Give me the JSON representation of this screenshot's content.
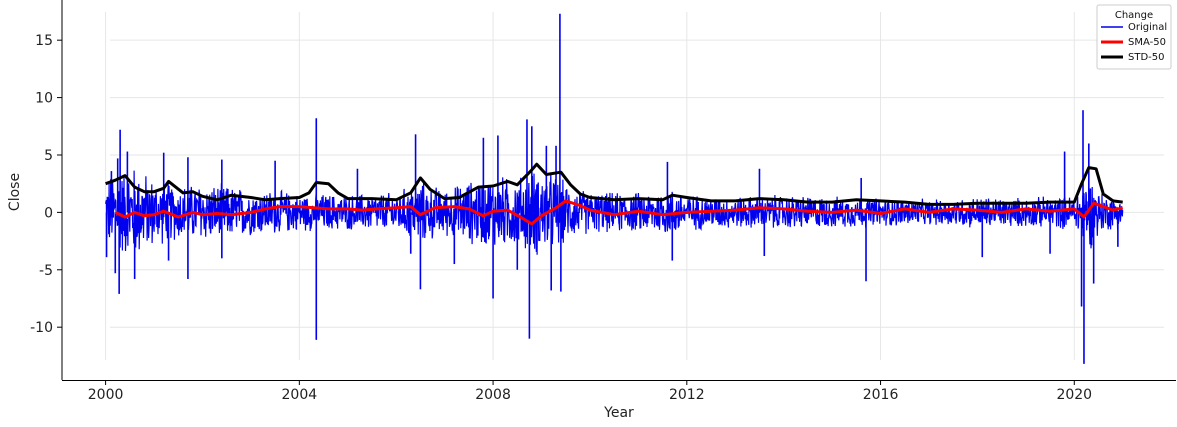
{
  "chart_data": {
    "type": "line",
    "xlabel": "Year",
    "ylabel": "Close",
    "xlim": [
      1999.1,
      2022.1
    ],
    "ylim": [
      -14.6,
      18.5
    ],
    "x_ticks": [
      2000,
      2004,
      2008,
      2012,
      2016,
      2020
    ],
    "y_ticks": [
      -10,
      -5,
      0,
      5,
      10,
      15
    ],
    "grid": true,
    "legend": {
      "title": "Change",
      "placement": "top-right",
      "entries": [
        {
          "name": "Original",
          "color": "#0000ee"
        },
        {
          "name": "SMA-50",
          "color": "#ff0000"
        },
        {
          "name": "STD-50",
          "color": "#000000"
        }
      ]
    },
    "series": [
      {
        "name": "Original",
        "color": "#0000ee",
        "kind": "daily",
        "range": [
          2000.0,
          2021.0
        ],
        "envelope": [
          [
            2000.0,
            3.5
          ],
          [
            2000.3,
            4.0
          ],
          [
            2000.6,
            4.5
          ],
          [
            2001.0,
            3.2
          ],
          [
            2001.5,
            2.6
          ],
          [
            2002.0,
            2.8
          ],
          [
            2002.5,
            2.6
          ],
          [
            2003.0,
            2.2
          ],
          [
            2003.5,
            2.1
          ],
          [
            2004.0,
            1.8
          ],
          [
            2004.5,
            1.8
          ],
          [
            2005.0,
            1.7
          ],
          [
            2006.0,
            1.9
          ],
          [
            2006.5,
            3.0
          ],
          [
            2007.0,
            2.2
          ],
          [
            2007.5,
            3.0
          ],
          [
            2008.0,
            3.5
          ],
          [
            2008.5,
            3.3
          ],
          [
            2008.9,
            4.2
          ],
          [
            2009.3,
            3.6
          ],
          [
            2009.6,
            2.5
          ],
          [
            2010.0,
            2.0
          ],
          [
            2010.5,
            1.9
          ],
          [
            2011.0,
            1.9
          ],
          [
            2011.7,
            2.3
          ],
          [
            2012.0,
            1.7
          ],
          [
            2013.0,
            1.5
          ],
          [
            2014.0,
            1.7
          ],
          [
            2015.0,
            1.5
          ],
          [
            2016.0,
            1.4
          ],
          [
            2017.0,
            1.2
          ],
          [
            2018.0,
            1.5
          ],
          [
            2019.0,
            1.4
          ],
          [
            2020.0,
            1.6
          ],
          [
            2020.3,
            3.6
          ],
          [
            2020.6,
            1.8
          ],
          [
            2021.0,
            1.5
          ]
        ],
        "spikes": [
          [
            2000.02,
            -3.9
          ],
          [
            2000.12,
            3.6
          ],
          [
            2000.2,
            -5.3
          ],
          [
            2000.25,
            4.7
          ],
          [
            2000.28,
            -7.1
          ],
          [
            2000.3,
            7.2
          ],
          [
            2000.45,
            5.3
          ],
          [
            2000.6,
            -5.8
          ],
          [
            2001.2,
            5.2
          ],
          [
            2001.3,
            -4.2
          ],
          [
            2001.7,
            4.8
          ],
          [
            2001.7,
            -5.8
          ],
          [
            2002.4,
            -4.0
          ],
          [
            2002.4,
            4.6
          ],
          [
            2003.5,
            4.5
          ],
          [
            2004.35,
            8.2
          ],
          [
            2004.35,
            -11.1
          ],
          [
            2005.2,
            3.8
          ],
          [
            2006.3,
            -3.6
          ],
          [
            2006.4,
            6.8
          ],
          [
            2006.5,
            -6.7
          ],
          [
            2007.2,
            -4.5
          ],
          [
            2007.8,
            6.5
          ],
          [
            2008.0,
            -7.5
          ],
          [
            2008.1,
            6.7
          ],
          [
            2008.5,
            -5.0
          ],
          [
            2008.7,
            8.1
          ],
          [
            2008.75,
            -11.0
          ],
          [
            2008.8,
            7.5
          ],
          [
            2009.1,
            5.8
          ],
          [
            2009.2,
            -6.8
          ],
          [
            2009.3,
            5.8
          ],
          [
            2009.38,
            17.3
          ],
          [
            2009.4,
            -6.9
          ],
          [
            2011.6,
            4.4
          ],
          [
            2011.7,
            -4.2
          ],
          [
            2013.5,
            3.8
          ],
          [
            2013.6,
            -3.8
          ],
          [
            2015.6,
            3.0
          ],
          [
            2015.7,
            -6.0
          ],
          [
            2018.1,
            -3.9
          ],
          [
            2019.5,
            -3.6
          ],
          [
            2019.8,
            5.3
          ],
          [
            2020.15,
            -8.2
          ],
          [
            2020.18,
            8.9
          ],
          [
            2020.2,
            -13.2
          ],
          [
            2020.3,
            6.0
          ],
          [
            2020.4,
            -6.2
          ],
          [
            2020.9,
            -3.0
          ]
        ]
      },
      {
        "name": "SMA-50",
        "color": "#ff0000",
        "points": [
          [
            2000.2,
            0.0
          ],
          [
            2000.4,
            -0.4
          ],
          [
            2000.6,
            0.0
          ],
          [
            2000.8,
            -0.3
          ],
          [
            2001.0,
            -0.2
          ],
          [
            2001.2,
            0.1
          ],
          [
            2001.5,
            -0.4
          ],
          [
            2001.8,
            0.0
          ],
          [
            2002.0,
            -0.2
          ],
          [
            2002.3,
            -0.1
          ],
          [
            2002.6,
            -0.2
          ],
          [
            2003.0,
            0.0
          ],
          [
            2003.3,
            0.3
          ],
          [
            2003.6,
            0.5
          ],
          [
            2004.0,
            0.5
          ],
          [
            2004.3,
            0.4
          ],
          [
            2004.6,
            0.3
          ],
          [
            2005.0,
            0.3
          ],
          [
            2005.3,
            0.2
          ],
          [
            2005.6,
            0.3
          ],
          [
            2006.0,
            0.4
          ],
          [
            2006.3,
            0.5
          ],
          [
            2006.5,
            -0.2
          ],
          [
            2006.8,
            0.4
          ],
          [
            2007.2,
            0.5
          ],
          [
            2007.5,
            0.3
          ],
          [
            2007.8,
            -0.3
          ],
          [
            2008.0,
            0.1
          ],
          [
            2008.3,
            0.2
          ],
          [
            2008.6,
            -0.5
          ],
          [
            2008.8,
            -1.0
          ],
          [
            2009.0,
            -0.3
          ],
          [
            2009.3,
            0.4
          ],
          [
            2009.5,
            1.0
          ],
          [
            2009.8,
            0.6
          ],
          [
            2010.0,
            0.2
          ],
          [
            2010.5,
            -0.2
          ],
          [
            2011.0,
            0.1
          ],
          [
            2011.5,
            -0.2
          ],
          [
            2012.0,
            0.0
          ],
          [
            2012.5,
            0.1
          ],
          [
            2013.0,
            0.2
          ],
          [
            2013.5,
            0.4
          ],
          [
            2014.0,
            0.3
          ],
          [
            2014.5,
            0.1
          ],
          [
            2015.0,
            0.0
          ],
          [
            2015.5,
            0.2
          ],
          [
            2016.0,
            -0.1
          ],
          [
            2016.5,
            0.3
          ],
          [
            2017.0,
            0.0
          ],
          [
            2017.5,
            0.3
          ],
          [
            2018.0,
            0.2
          ],
          [
            2018.5,
            0.0
          ],
          [
            2019.0,
            0.3
          ],
          [
            2019.5,
            0.1
          ],
          [
            2020.0,
            0.3
          ],
          [
            2020.2,
            -0.4
          ],
          [
            2020.4,
            0.8
          ],
          [
            2020.6,
            0.5
          ],
          [
            2020.8,
            0.2
          ],
          [
            2021.0,
            0.4
          ]
        ]
      },
      {
        "name": "STD-50",
        "color": "#000000",
        "points": [
          [
            2000.0,
            2.5
          ],
          [
            2000.2,
            2.8
          ],
          [
            2000.4,
            3.2
          ],
          [
            2000.6,
            2.2
          ],
          [
            2000.8,
            1.8
          ],
          [
            2001.0,
            1.8
          ],
          [
            2001.2,
            2.1
          ],
          [
            2001.3,
            2.7
          ],
          [
            2001.6,
            1.7
          ],
          [
            2001.8,
            1.8
          ],
          [
            2002.0,
            1.4
          ],
          [
            2002.3,
            1.1
          ],
          [
            2002.6,
            1.5
          ],
          [
            2003.0,
            1.3
          ],
          [
            2003.3,
            1.1
          ],
          [
            2003.6,
            1.2
          ],
          [
            2004.0,
            1.3
          ],
          [
            2004.2,
            1.7
          ],
          [
            2004.35,
            2.6
          ],
          [
            2004.6,
            2.5
          ],
          [
            2004.8,
            1.7
          ],
          [
            2005.0,
            1.2
          ],
          [
            2005.5,
            1.2
          ],
          [
            2006.0,
            1.1
          ],
          [
            2006.3,
            1.7
          ],
          [
            2006.5,
            3.0
          ],
          [
            2006.7,
            2.0
          ],
          [
            2007.0,
            1.2
          ],
          [
            2007.3,
            1.3
          ],
          [
            2007.7,
            2.2
          ],
          [
            2008.0,
            2.3
          ],
          [
            2008.3,
            2.7
          ],
          [
            2008.5,
            2.4
          ],
          [
            2008.8,
            3.7
          ],
          [
            2008.9,
            4.2
          ],
          [
            2009.1,
            3.3
          ],
          [
            2009.4,
            3.5
          ],
          [
            2009.6,
            2.4
          ],
          [
            2009.8,
            1.6
          ],
          [
            2010.0,
            1.3
          ],
          [
            2010.5,
            1.1
          ],
          [
            2011.0,
            1.2
          ],
          [
            2011.5,
            1.1
          ],
          [
            2011.7,
            1.5
          ],
          [
            2012.0,
            1.3
          ],
          [
            2012.5,
            1.0
          ],
          [
            2013.0,
            1.0
          ],
          [
            2013.5,
            1.2
          ],
          [
            2014.0,
            1.1
          ],
          [
            2014.5,
            0.9
          ],
          [
            2015.0,
            0.9
          ],
          [
            2015.5,
            1.1
          ],
          [
            2016.0,
            1.0
          ],
          [
            2016.5,
            0.9
          ],
          [
            2017.0,
            0.7
          ],
          [
            2017.5,
            0.7
          ],
          [
            2018.0,
            0.8
          ],
          [
            2018.5,
            0.8
          ],
          [
            2019.0,
            0.8
          ],
          [
            2019.5,
            0.9
          ],
          [
            2020.0,
            0.9
          ],
          [
            2020.15,
            2.5
          ],
          [
            2020.3,
            3.9
          ],
          [
            2020.45,
            3.8
          ],
          [
            2020.6,
            1.6
          ],
          [
            2020.8,
            1.0
          ],
          [
            2021.0,
            0.9
          ]
        ]
      }
    ]
  }
}
